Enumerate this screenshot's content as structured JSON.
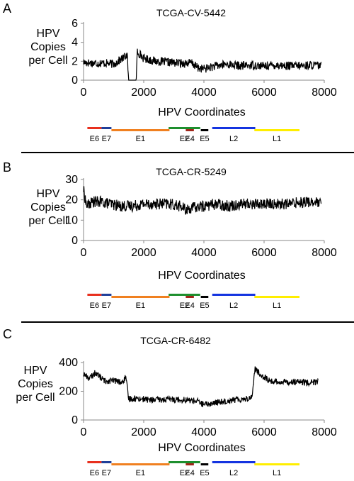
{
  "separators": [],
  "chart_data": [
    {
      "type": "line",
      "panel_letter": "A",
      "title": "TCGA-CV-5442",
      "ylabel": "HPV Copies per Cell",
      "ylabel_lines": [
        "HPV",
        "Copies",
        "per Cell"
      ],
      "xlabel": "HPV Coordinates",
      "xlim": [
        0,
        8000
      ],
      "ylim": [
        0,
        6
      ],
      "x_ticks": [
        0,
        2000,
        4000,
        6000,
        8000
      ],
      "y_ticks": [
        0,
        2,
        4,
        6
      ],
      "x": [
        0,
        300,
        700,
        1000,
        1300,
        1450,
        1500,
        1750,
        1790,
        1800,
        2000,
        2400,
        2800,
        3200,
        3600,
        3800,
        4000,
        4400,
        4800,
        5200,
        5600,
        6000,
        6400,
        6800,
        7200,
        7600,
        7900
      ],
      "y": [
        1.9,
        1.8,
        1.8,
        1.7,
        2.3,
        2.7,
        0.0,
        0.0,
        3.4,
        3.0,
        2.3,
        2.0,
        1.9,
        1.8,
        1.8,
        1.3,
        1.2,
        1.5,
        1.7,
        1.5,
        1.6,
        1.5,
        1.6,
        1.5,
        1.5,
        1.6,
        1.5
      ],
      "noise": 0.45
    },
    {
      "type": "line",
      "panel_letter": "B",
      "title": "TCGA-CR-5249",
      "ylabel": "HPV Copies per Cell",
      "ylabel_lines": [
        "HPV",
        "Copies",
        "per Cell"
      ],
      "xlabel": "HPV Coordinates",
      "xlim": [
        0,
        8000
      ],
      "ylim": [
        0,
        30
      ],
      "x_ticks": [
        0,
        2000,
        4000,
        6000,
        8000
      ],
      "y_ticks": [
        0,
        10,
        20,
        30
      ],
      "x": [
        0,
        100,
        300,
        600,
        900,
        1200,
        1600,
        2000,
        2400,
        2800,
        3200,
        3400,
        3600,
        4000,
        4400,
        4800,
        5200,
        5600,
        6000,
        6400,
        6800,
        7200,
        7600,
        7900
      ],
      "y": [
        25,
        17,
        19,
        19,
        18,
        17,
        17,
        18,
        18,
        18,
        17,
        15,
        16,
        17,
        18,
        17,
        18,
        18,
        18,
        18,
        18,
        19,
        19,
        18
      ],
      "noise": 2.8
    },
    {
      "type": "line",
      "panel_letter": "C",
      "title": "TCGA-CR-6482",
      "ylabel": "HPV Copies per Cell",
      "ylabel_lines": [
        "HPV",
        "Copies",
        "per Cell"
      ],
      "xlabel": "HPV Coordinates",
      "xlim": [
        0,
        8000
      ],
      "ylim": [
        0,
        400
      ],
      "x_ticks": [
        0,
        2000,
        4000,
        6000,
        8000
      ],
      "y_ticks": [
        0,
        200,
        400
      ],
      "x": [
        0,
        200,
        400,
        700,
        1000,
        1300,
        1400,
        1500,
        1800,
        2200,
        2600,
        3000,
        3400,
        3800,
        4000,
        4400,
        4800,
        5200,
        5500,
        5600,
        5700,
        5800,
        6200,
        6600,
        7000,
        7400,
        7800
      ],
      "y": [
        320,
        290,
        330,
        270,
        275,
        260,
        300,
        150,
        150,
        140,
        140,
        145,
        140,
        130,
        105,
        120,
        135,
        145,
        150,
        165,
        360,
        330,
        270,
        265,
        265,
        260,
        265
      ],
      "noise": 22
    }
  ],
  "genome_map": {
    "genes": [
      {
        "name": "E6",
        "start": 80,
        "end": 550,
        "color": "#e8301e",
        "row": 0
      },
      {
        "name": "E7",
        "start": 550,
        "end": 880,
        "color": "#1f3f9a",
        "row": 0
      },
      {
        "name": "E1",
        "start": 880,
        "end": 2810,
        "color": "#f08020",
        "row": 1
      },
      {
        "name": "E2",
        "start": 2780,
        "end": 3830,
        "color": "#1e8f2e",
        "row": 0
      },
      {
        "name": "E4",
        "start": 3350,
        "end": 3620,
        "color": "#a0261a",
        "row": 1
      },
      {
        "name": "E5",
        "start": 3850,
        "end": 4100,
        "color": "#000000",
        "row": 1
      },
      {
        "name": "L2",
        "start": 4230,
        "end": 5660,
        "color": "#1434e0",
        "row": 0
      },
      {
        "name": "L1",
        "start": 5630,
        "end": 7130,
        "color": "#ffee00",
        "row": 1
      }
    ]
  }
}
